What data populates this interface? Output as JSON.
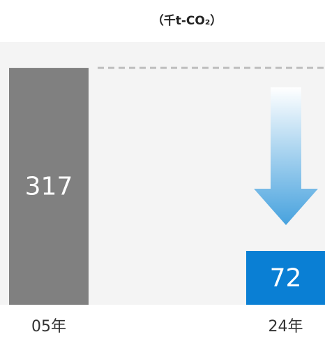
{
  "chart_data": {
    "type": "bar",
    "title": "（千t-CO₂）",
    "categories": [
      "05年",
      "24年"
    ],
    "values": [
      317,
      72
    ],
    "colors": [
      "#808080",
      "#0a7fd4"
    ],
    "ylim": [
      0,
      333
    ]
  }
}
